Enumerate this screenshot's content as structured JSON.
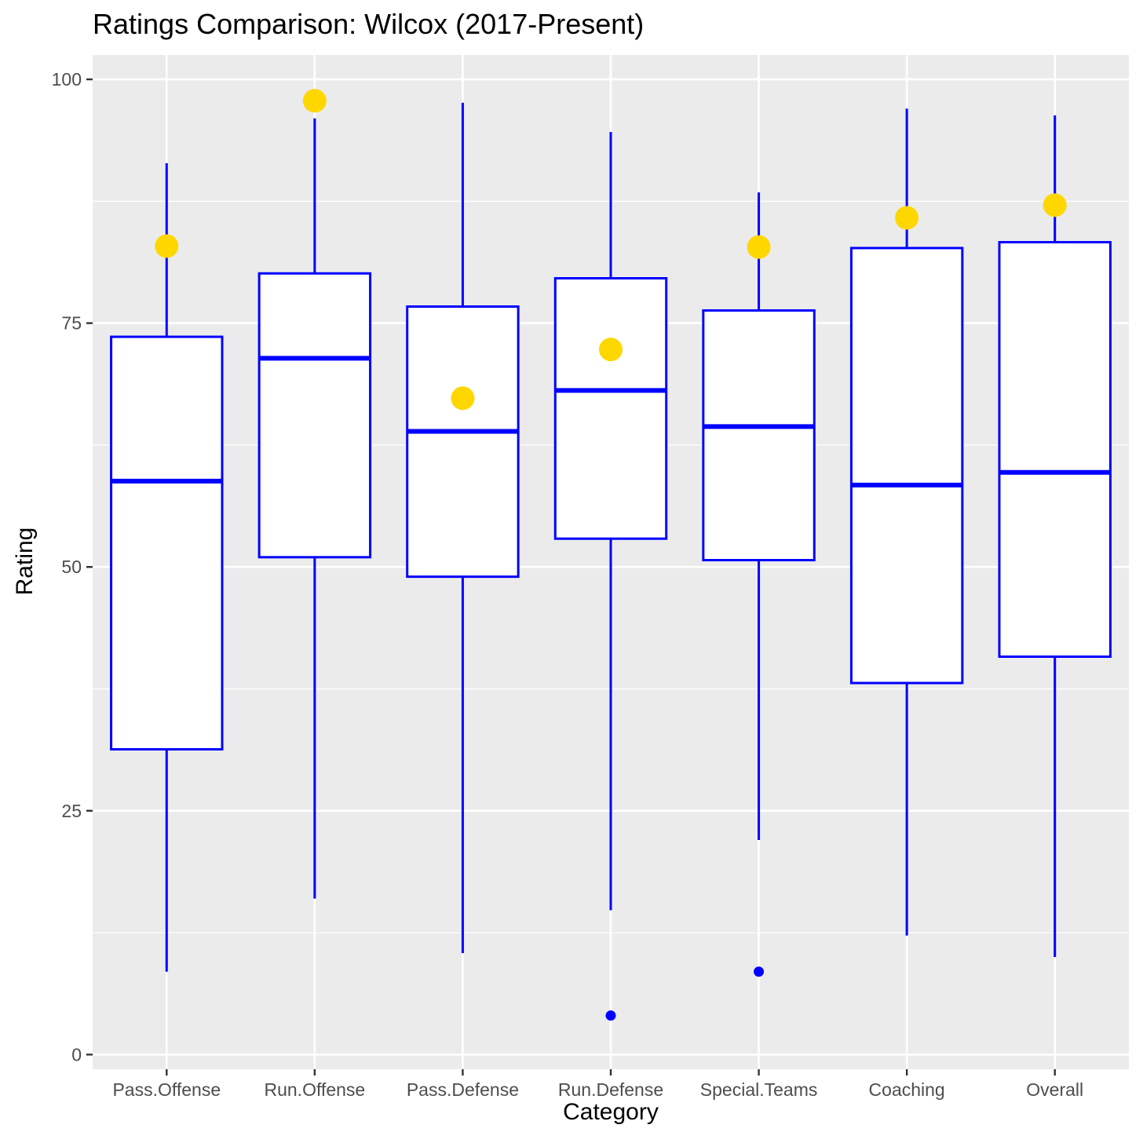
{
  "chart_data": {
    "type": "boxplot",
    "title": "Ratings Comparison: Wilcox (2017-Present)",
    "xlabel": "Category",
    "ylabel": "Rating",
    "ylim": [
      -1.5,
      102.5
    ],
    "yticks": [
      0,
      25,
      50,
      75,
      100
    ],
    "grid": true,
    "categories": [
      "Pass.Offense",
      "Run.Offense",
      "Pass.Defense",
      "Run.Defense",
      "Special.Teams",
      "Coaching",
      "Overall"
    ],
    "boxes": [
      {
        "category": "Pass.Offense",
        "whisker_low": 8.5,
        "q1": 31.3,
        "median": 58.8,
        "q3": 73.6,
        "whisker_high": 91.4,
        "outliers": []
      },
      {
        "category": "Run.Offense",
        "whisker_low": 16.0,
        "q1": 51.0,
        "median": 71.4,
        "q3": 80.1,
        "whisker_high": 96.0,
        "outliers": []
      },
      {
        "category": "Pass.Defense",
        "whisker_low": 10.4,
        "q1": 49.0,
        "median": 63.9,
        "q3": 76.7,
        "whisker_high": 97.6,
        "outliers": []
      },
      {
        "category": "Run.Defense",
        "whisker_low": 14.8,
        "q1": 52.9,
        "median": 68.1,
        "q3": 79.6,
        "whisker_high": 94.6,
        "outliers": [
          4.0
        ]
      },
      {
        "category": "Special.Teams",
        "whisker_low": 22.0,
        "q1": 50.7,
        "median": 64.4,
        "q3": 76.3,
        "whisker_high": 88.4,
        "outliers": [
          8.5
        ]
      },
      {
        "category": "Coaching",
        "whisker_low": 12.2,
        "q1": 38.1,
        "median": 58.4,
        "q3": 82.7,
        "whisker_high": 97.0,
        "outliers": []
      },
      {
        "category": "Overall",
        "whisker_low": 10.0,
        "q1": 40.8,
        "median": 59.7,
        "q3": 83.3,
        "whisker_high": 96.3,
        "outliers": []
      }
    ],
    "highlight_points": [
      {
        "category": "Pass.Offense",
        "value": 82.9
      },
      {
        "category": "Run.Offense",
        "value": 97.8
      },
      {
        "category": "Pass.Defense",
        "value": 67.3
      },
      {
        "category": "Run.Defense",
        "value": 72.3
      },
      {
        "category": "Special.Teams",
        "value": 82.8
      },
      {
        "category": "Coaching",
        "value": 85.8
      },
      {
        "category": "Overall",
        "value": 87.1
      }
    ],
    "colors": {
      "box_stroke": "#0000ff",
      "box_fill": "#ffffff",
      "highlight": "#ffd700",
      "panel_background": "#ebebeb",
      "gridline": "#ffffff",
      "axis_text": "#4d4d4d"
    }
  }
}
